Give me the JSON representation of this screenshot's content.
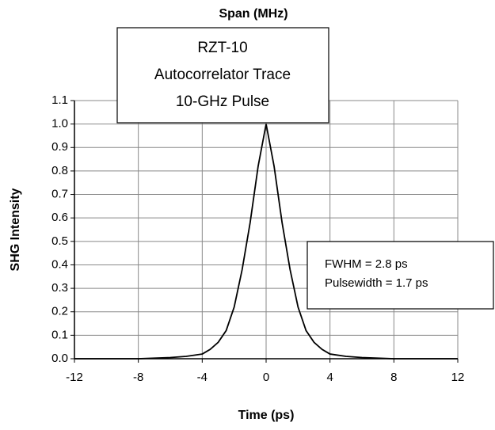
{
  "chart_data": {
    "type": "line",
    "title": "Span (MHz)",
    "x_label": "Time (ps)",
    "y_label": "SHG Intensity",
    "annotations": [
      [
        "RZT-10",
        "Autocorrelator Trace",
        "10-GHz Pulse"
      ],
      [
        "FWHM = 2.8 ps",
        "Pulsewidth  = 1.7 ps"
      ]
    ],
    "x": [
      -12,
      -10,
      -8,
      -6,
      -5,
      -4,
      -3.5,
      -3,
      -2.5,
      -2,
      -1.5,
      -1,
      -0.5,
      0,
      0.5,
      1,
      1.5,
      2,
      2.5,
      3,
      3.5,
      4,
      5,
      6,
      8,
      10,
      12
    ],
    "series": [
      {
        "name": "Trace",
        "color": "#000000",
        "values": [
          0,
          0,
          0,
          0.005,
          0.01,
          0.02,
          0.04,
          0.07,
          0.12,
          0.22,
          0.38,
          0.58,
          0.82,
          1.0,
          0.82,
          0.58,
          0.38,
          0.22,
          0.12,
          0.07,
          0.04,
          0.02,
          0.01,
          0.005,
          0,
          0,
          0
        ]
      }
    ],
    "xlim": [
      -12,
      12
    ],
    "xticks": [
      -12,
      -8,
      -4,
      0,
      4,
      8,
      12
    ],
    "ylim": [
      0,
      1.1
    ],
    "yticks": [
      {
        "value": 0,
        "label": "0.0"
      },
      0.1,
      0.2,
      0.3,
      0.4,
      0.5,
      0.6,
      0.7,
      0.8,
      0.9,
      {
        "value": 1,
        "label": "1.0"
      },
      1.1
    ],
    "grid": true
  }
}
